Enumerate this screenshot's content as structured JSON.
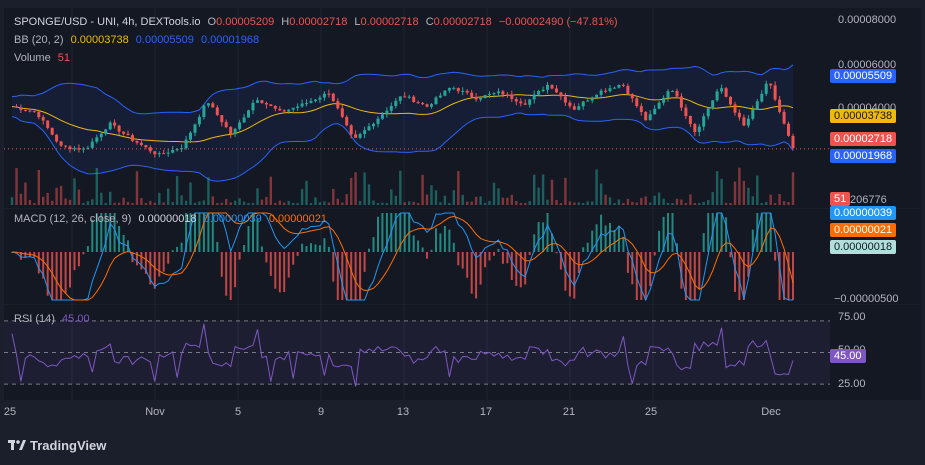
{
  "header": {
    "symbol": "SPONGE/USD - UNI, 4h, DEXTools.io",
    "o_label": "O",
    "o": "0.00005209",
    "h_label": "H",
    "h": "0.00002718",
    "l_label": "L",
    "l": "0.00002718",
    "c_label": "C",
    "c": "0.00002718",
    "change": "−0.00002490 (−47.81%)"
  },
  "bb_legend": {
    "label": "BB (20, 2)",
    "basis": "0.00003738",
    "upper": "0.00005509",
    "lower": "0.00001968"
  },
  "volume_legend": {
    "label": "Volume",
    "value": "51"
  },
  "macd_legend": {
    "label": "MACD (12, 26, close, 9)",
    "hist": "0.00000018",
    "macd": "0.00000039",
    "signal": "0.00000021"
  },
  "rsi_legend": {
    "label": "RSI (14)",
    "value": "45.00"
  },
  "price_axis": {
    "ticks": [
      "0.00008000",
      "0.00006000",
      "0.00004000"
    ],
    "labels": {
      "upper": "0.00005509",
      "basis": "0.00003738",
      "close": "0.00002718",
      "lower": "0.00001968",
      "volume": "51",
      "volume_tick": "206776"
    }
  },
  "macd_axis": {
    "ticks": [
      "−0.00000500"
    ],
    "labels": {
      "macd": "0.00000039",
      "signal": "0.00000021",
      "hist": "0.00000018"
    }
  },
  "rsi_axis": {
    "ticks": [
      "75.00",
      "50.00",
      "25.00"
    ],
    "label": "45.00"
  },
  "time_axis": {
    "ticks": [
      "25",
      "Nov",
      "5",
      "9",
      "13",
      "17",
      "21",
      "25",
      "Dec"
    ]
  },
  "branding": {
    "text": "TradingView"
  },
  "colors": {
    "up": "#26a69a",
    "down": "#ef5350",
    "bb": "#2962ff",
    "basis": "#f0b90b",
    "macd": "#2196f3",
    "signal": "#ff6d00",
    "rsi": "#7e57c2",
    "close_line": "#ef5350"
  },
  "chart_data": [
    {
      "type": "candlestick",
      "title": "SPONGE/USD - UNI, 4h, DEXTools.io",
      "ylim": [
        1e-05,
        8e-05
      ],
      "x_ticks": [
        "25",
        "Nov",
        "5",
        "9",
        "13",
        "17",
        "21",
        "25",
        "Dec"
      ],
      "last": {
        "open": 5.209e-05,
        "high": 2.718e-05,
        "low": 2.718e-05,
        "close": 2.718e-05,
        "change": -2.49e-05,
        "change_pct": -47.81
      },
      "bollinger": {
        "period": 20,
        "mult": 2,
        "upper": 5.509e-05,
        "basis": 3.738e-05,
        "lower": 1.968e-05
      },
      "approx_close_path": [
        4.2e-05,
        4e-05,
        2.8e-05,
        2.7e-05,
        3.6e-05,
        3e-05,
        2.5e-05,
        2.8e-05,
        4.4e-05,
        3.2e-05,
        4.5e-05,
        4e-05,
        4.3e-05,
        4.7e-05,
        3e-05,
        3.8e-05,
        4.6e-05,
        4.2e-05,
        4.9e-05,
        4.5e-05,
        4.7e-05,
        4.3e-05,
        5e-05,
        4.1e-05,
        4.7e-05,
        5e-05,
        3.7e-05,
        4.9e-05,
        3.3e-05,
        4.9e-05,
        3.5e-05,
        5.1e-05,
        2.7e-05
      ]
    },
    {
      "type": "bar",
      "title": "Volume",
      "last": 51
    },
    {
      "type": "line",
      "title": "MACD (12, 26, close, 9)",
      "ylim": [
        -5e-06,
        4e-06
      ],
      "last": {
        "histogram": 1.8e-07,
        "macd": 3.9e-07,
        "signal": 2.1e-07
      }
    },
    {
      "type": "line",
      "title": "RSI (14)",
      "ylim": [
        20,
        80
      ],
      "levels": [
        70,
        50,
        30
      ],
      "last": 45.0
    }
  ]
}
